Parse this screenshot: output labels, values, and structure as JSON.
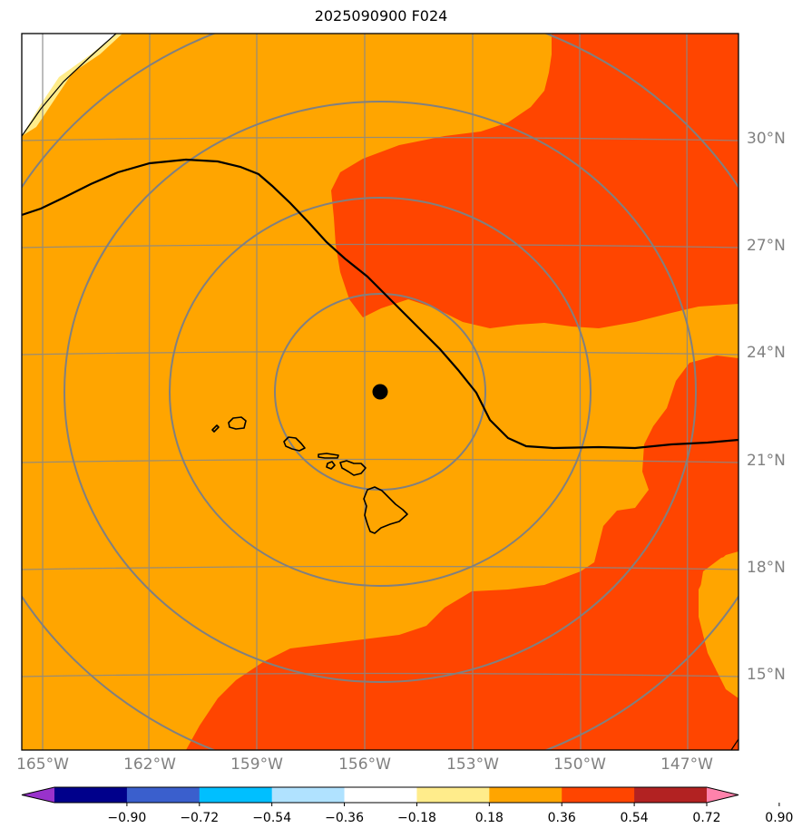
{
  "title": "2025090900 F024",
  "lon_labels": [
    "165°W",
    "162°W",
    "159°W",
    "156°W",
    "153°W",
    "150°W",
    "147°W"
  ],
  "lat_labels": [
    "30°N",
    "27°N",
    "24°N",
    "21°N",
    "18°N",
    "15°N"
  ],
  "colorbar": {
    "ticks": [
      "−0.90",
      "−0.72",
      "−0.54",
      "−0.36",
      "−0.18",
      "0.18",
      "0.36",
      "0.54",
      "0.72",
      "0.90"
    ],
    "colors": [
      "#9932cc",
      "#00008b",
      "#3a5fcd",
      "#00bfff",
      "#b0e2ff",
      "#ffffff",
      "#ffec8b",
      "#ffa500",
      "#ff4500",
      "#b22222",
      "#ff82ab"
    ]
  },
  "map": {
    "center_marker": "storm-center-dot",
    "range_rings": 4,
    "field_colors": {
      "background": "#ffa500",
      "high": "#ff4500",
      "low": "#ffec8b",
      "land_gap": "#ffffff"
    }
  }
}
